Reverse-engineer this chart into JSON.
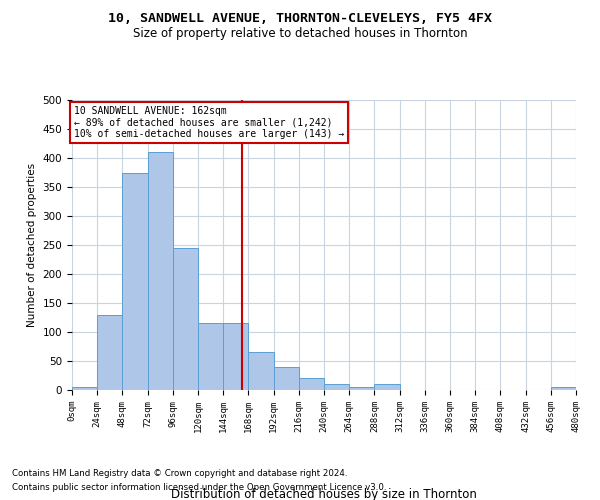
{
  "title1": "10, SANDWELL AVENUE, THORNTON-CLEVELEYS, FY5 4FX",
  "title2": "Size of property relative to detached houses in Thornton",
  "xlabel": "Distribution of detached houses by size in Thornton",
  "ylabel": "Number of detached properties",
  "footnote1": "Contains HM Land Registry data © Crown copyright and database right 2024.",
  "footnote2": "Contains public sector information licensed under the Open Government Licence v3.0.",
  "annotation_line1": "10 SANDWELL AVENUE: 162sqm",
  "annotation_line2": "← 89% of detached houses are smaller (1,242)",
  "annotation_line3": "10% of semi-detached houses are larger (143) →",
  "bin_edges": [
    0,
    24,
    48,
    72,
    96,
    120,
    144,
    168,
    192,
    216,
    240,
    264,
    288,
    312,
    336,
    360,
    384,
    408,
    432,
    456,
    480
  ],
  "bar_heights": [
    5,
    130,
    375,
    410,
    245,
    115,
    115,
    65,
    40,
    20,
    10,
    5,
    10,
    0,
    0,
    0,
    0,
    0,
    0,
    5
  ],
  "bar_color": "#aec6e8",
  "bar_edge_color": "#5a9fd4",
  "vline_color": "#cc0000",
  "vline_x": 162,
  "annotation_box_color": "#cc0000",
  "background_color": "#ffffff",
  "grid_color": "#c8d4e0",
  "ylim": [
    0,
    500
  ],
  "yticks": [
    0,
    50,
    100,
    150,
    200,
    250,
    300,
    350,
    400,
    450,
    500
  ]
}
